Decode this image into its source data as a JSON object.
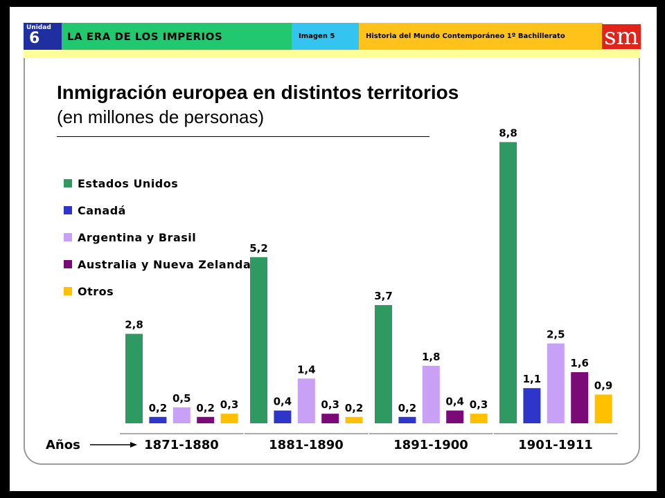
{
  "header": {
    "unit_label": "Unidad",
    "unit_number": "6",
    "era_title": "LA ERA DE LOS IMPERIOS",
    "image_label": "Imagen 5",
    "course_label": "Historia del Mundo Contemporáneo 1º Bachillerato",
    "brand": "sm",
    "colors": {
      "unit": "#1f2fa0",
      "era": "#22c870",
      "image": "#33c4f0",
      "course": "#ffc21a",
      "brand": "#e2231a",
      "rule": "#ffff99"
    }
  },
  "chart_data": {
    "type": "bar",
    "title": "Inmigración europea en distintos territorios",
    "subtitle": "(en millones de personas)",
    "xlabel": "Años",
    "categories": [
      "1871-1880",
      "1881-1890",
      "1891-1900",
      "1901-1911"
    ],
    "series": [
      {
        "name": "Estados Unidos",
        "color": "#2e9960",
        "values": [
          2.8,
          5.2,
          3.7,
          8.8
        ],
        "labels": [
          "2,8",
          "5,2",
          "3,7",
          "8,8"
        ]
      },
      {
        "name": "Canadá",
        "color": "#2d36c8",
        "values": [
          0.2,
          0.4,
          0.2,
          1.1
        ],
        "labels": [
          "0,2",
          "0,4",
          "0,2",
          "1,1"
        ]
      },
      {
        "name": "Argentina y Brasil",
        "color": "#c8a0f5",
        "values": [
          0.5,
          1.4,
          1.8,
          2.5
        ],
        "labels": [
          "0,5",
          "1,4",
          "1,8",
          "2,5"
        ]
      },
      {
        "name": "Australia y Nueva Zelanda",
        "color": "#7a0a78",
        "values": [
          0.2,
          0.3,
          0.4,
          1.6
        ],
        "labels": [
          "0,2",
          "0,3",
          "0,4",
          "1,6"
        ]
      },
      {
        "name": "Otros",
        "color": "#ffc000",
        "values": [
          0.3,
          0.2,
          0.3,
          0.9
        ],
        "labels": [
          "0,3",
          "0,2",
          "0,3",
          "0,9"
        ]
      }
    ],
    "ylim": [
      0,
      8.8
    ],
    "legend": "left",
    "grid": false
  }
}
